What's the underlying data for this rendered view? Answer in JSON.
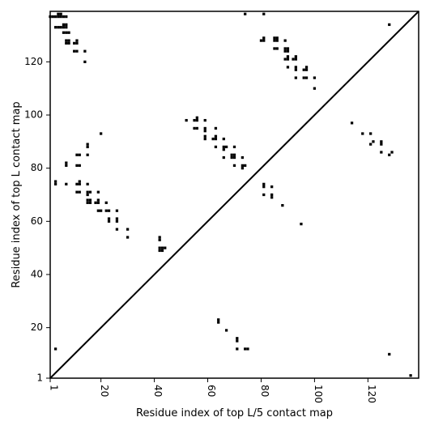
{
  "chart_data": {
    "type": "heatmap",
    "title": "",
    "xlabel": "Residue index of top L/5 contact map",
    "ylabel": "Residue index of top L contact map",
    "xlim": [
      1,
      139
    ],
    "ylim": [
      1,
      139
    ],
    "x_ticks": [
      1,
      20,
      40,
      60,
      80,
      100,
      120
    ],
    "y_ticks": [
      1,
      20,
      40,
      60,
      80,
      100,
      120
    ],
    "diagonal": true,
    "mark_color": "#000000",
    "upper_contacts": [
      [
        1,
        137
      ],
      [
        2,
        137
      ],
      [
        3,
        137
      ],
      [
        4,
        137
      ],
      [
        5,
        137
      ],
      [
        6,
        137
      ],
      [
        7,
        137
      ],
      [
        4,
        138
      ],
      [
        5,
        138
      ],
      [
        3,
        133
      ],
      [
        4,
        133
      ],
      [
        5,
        133
      ],
      [
        6,
        133
      ],
      [
        6,
        134
      ],
      [
        7,
        134
      ],
      [
        7,
        133
      ],
      [
        6,
        131
      ],
      [
        7,
        131
      ],
      [
        8,
        131
      ],
      [
        7,
        128
      ],
      [
        8,
        128
      ],
      [
        7,
        127
      ],
      [
        8,
        127
      ],
      [
        10,
        127
      ],
      [
        11,
        127
      ],
      [
        11,
        128
      ],
      [
        10,
        124
      ],
      [
        11,
        124
      ],
      [
        14,
        124
      ],
      [
        14,
        120
      ],
      [
        74,
        138
      ],
      [
        81,
        138
      ],
      [
        80,
        128
      ],
      [
        81,
        128
      ],
      [
        81,
        129
      ],
      [
        85,
        129
      ],
      [
        86,
        129
      ],
      [
        86,
        128
      ],
      [
        85,
        128
      ],
      [
        89,
        128
      ],
      [
        85,
        125
      ],
      [
        86,
        125
      ],
      [
        89,
        125
      ],
      [
        90,
        125
      ],
      [
        89,
        124
      ],
      [
        90,
        124
      ],
      [
        89,
        121
      ],
      [
        90,
        121
      ],
      [
        90,
        122
      ],
      [
        92,
        121
      ],
      [
        93,
        121
      ],
      [
        93,
        122
      ],
      [
        90,
        118
      ],
      [
        93,
        118
      ],
      [
        93,
        117
      ],
      [
        96,
        117
      ],
      [
        97,
        117
      ],
      [
        97,
        118
      ],
      [
        93,
        114
      ],
      [
        96,
        114
      ],
      [
        97,
        114
      ],
      [
        100,
        114
      ],
      [
        100,
        110
      ],
      [
        20,
        93
      ],
      [
        52,
        98
      ],
      [
        55,
        98
      ],
      [
        56,
        98
      ],
      [
        56,
        99
      ],
      [
        59,
        98
      ],
      [
        55,
        95
      ],
      [
        56,
        95
      ],
      [
        59,
        95
      ],
      [
        59,
        94
      ],
      [
        59,
        92
      ],
      [
        59,
        91
      ],
      [
        62,
        91
      ],
      [
        63,
        91
      ],
      [
        63,
        92
      ],
      [
        66,
        91
      ],
      [
        63,
        95
      ],
      [
        63,
        88
      ],
      [
        66,
        88
      ],
      [
        67,
        88
      ],
      [
        66,
        87
      ],
      [
        70,
        88
      ],
      [
        69,
        85
      ],
      [
        70,
        85
      ],
      [
        69,
        84
      ],
      [
        70,
        84
      ],
      [
        66,
        84
      ],
      [
        73,
        84
      ],
      [
        73,
        81
      ],
      [
        74,
        81
      ],
      [
        73,
        80
      ],
      [
        70,
        81
      ],
      [
        15,
        89
      ],
      [
        15,
        88
      ],
      [
        15,
        85
      ],
      [
        11,
        85
      ],
      [
        12,
        85
      ],
      [
        7,
        82
      ],
      [
        7,
        81
      ],
      [
        11,
        81
      ],
      [
        12,
        81
      ],
      [
        3,
        75
      ],
      [
        3,
        74
      ],
      [
        7,
        74
      ],
      [
        11,
        74
      ],
      [
        12,
        74
      ],
      [
        12,
        75
      ],
      [
        15,
        74
      ],
      [
        11,
        71
      ],
      [
        12,
        71
      ],
      [
        15,
        71
      ],
      [
        16,
        71
      ],
      [
        19,
        71
      ],
      [
        15,
        70
      ],
      [
        15,
        68
      ],
      [
        16,
        68
      ],
      [
        15,
        67
      ],
      [
        16,
        67
      ],
      [
        18,
        67
      ],
      [
        19,
        67
      ],
      [
        19,
        68
      ],
      [
        22,
        67
      ],
      [
        19,
        64
      ],
      [
        20,
        64
      ],
      [
        22,
        64
      ],
      [
        23,
        64
      ],
      [
        26,
        64
      ],
      [
        23,
        61
      ],
      [
        23,
        60
      ],
      [
        26,
        61
      ],
      [
        26,
        60
      ],
      [
        26,
        57
      ],
      [
        30,
        57
      ],
      [
        30,
        54
      ],
      [
        42,
        54
      ],
      [
        42,
        53
      ],
      [
        42,
        50
      ],
      [
        42,
        49
      ],
      [
        43,
        50
      ],
      [
        43,
        49
      ],
      [
        44,
        50
      ],
      [
        81,
        74
      ],
      [
        81,
        73
      ],
      [
        84,
        73
      ],
      [
        81,
        70
      ],
      [
        84,
        70
      ],
      [
        84,
        69
      ],
      [
        88,
        66
      ],
      [
        95,
        59
      ]
    ],
    "lower_contacts": [
      [
        3,
        12
      ],
      [
        64,
        23
      ],
      [
        64,
        22
      ],
      [
        67,
        19
      ],
      [
        71,
        16
      ],
      [
        71,
        15
      ],
      [
        71,
        12
      ],
      [
        74,
        12
      ],
      [
        75,
        12
      ],
      [
        114,
        97
      ],
      [
        118,
        93
      ],
      [
        121,
        93
      ],
      [
        121,
        89
      ],
      [
        122,
        90
      ],
      [
        125,
        90
      ],
      [
        125,
        89
      ],
      [
        125,
        86
      ],
      [
        128,
        85
      ],
      [
        129,
        86
      ],
      [
        128,
        134
      ],
      [
        128,
        10
      ],
      [
        136,
        2
      ]
    ]
  }
}
